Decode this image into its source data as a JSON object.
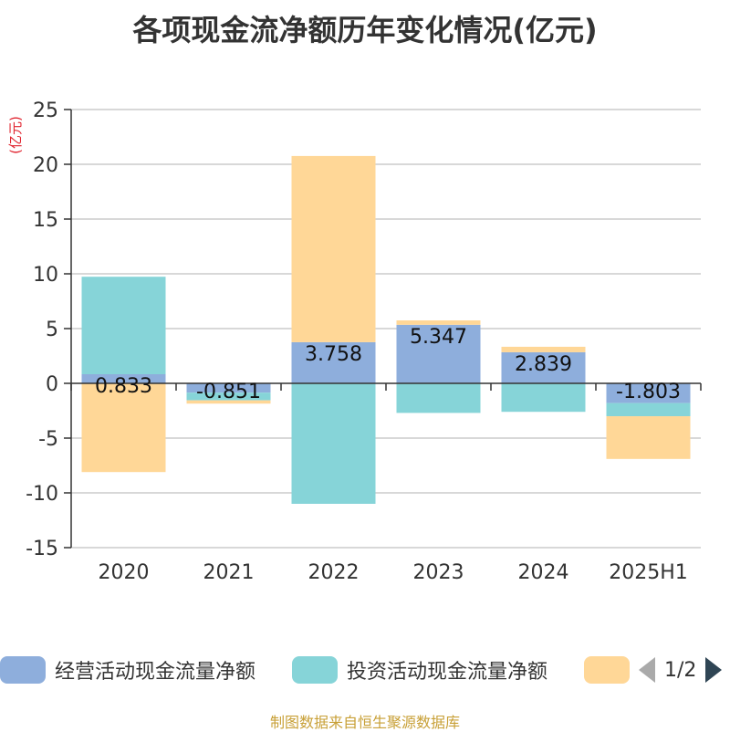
{
  "title": "各项现金流净额历年变化情况(亿元)",
  "source": "制图数据来自恒生聚源数据库",
  "pager": {
    "text": "1/2"
  },
  "chart_data": {
    "type": "bar",
    "stacked": true,
    "ylabel": "(亿元)",
    "ylim": [
      -15,
      25
    ],
    "yticks": [
      25,
      20,
      15,
      10,
      5,
      0,
      -5,
      -10,
      -15
    ],
    "grid": true,
    "legend_position": "bottom",
    "categories": [
      "2020",
      "2021",
      "2022",
      "2023",
      "2024",
      "2025H1"
    ],
    "series": [
      {
        "name": "经营活动现金流量净额",
        "color": "#8eaedc",
        "values": [
          0.833,
          -0.851,
          3.758,
          5.347,
          2.839,
          -1.803
        ],
        "labels": [
          "0.833",
          "-0.851",
          "3.758",
          "5.347",
          "2.839",
          "-1.803"
        ]
      },
      {
        "name": "投资活动现金流量净额",
        "color": "#86d4d8",
        "values": [
          8.9,
          -0.7,
          -11.0,
          -2.7,
          -2.6,
          -1.2
        ]
      },
      {
        "name": "",
        "color": "#ffd797",
        "values": [
          -8.1,
          -0.3,
          17.0,
          0.4,
          0.5,
          -3.9
        ]
      }
    ]
  }
}
